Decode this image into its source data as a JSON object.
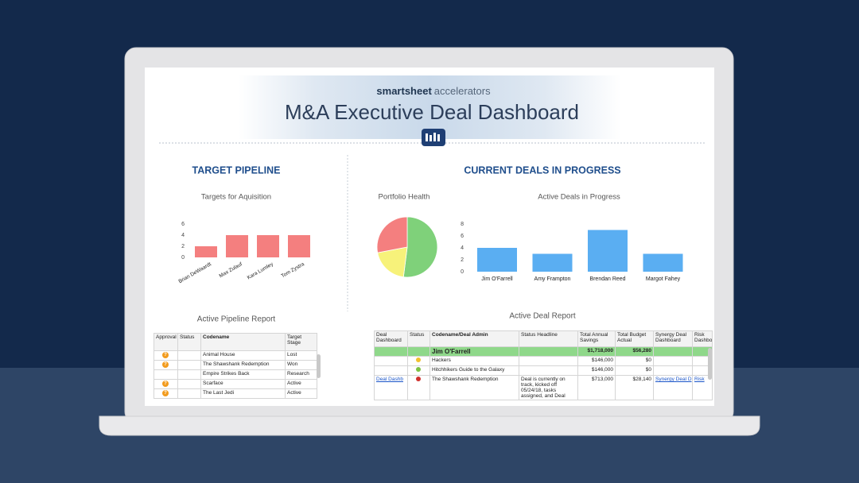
{
  "header": {
    "brand": "smartsheet",
    "brand_suffix": "accelerators",
    "title": "M&A Executive Deal Dashboard"
  },
  "sections": {
    "target_pipeline": "TARGET PIPELINE",
    "current_deals": "CURRENT DEALS IN PROGRESS"
  },
  "chart_data": [
    {
      "type": "bar",
      "title": "Targets for Aquisition",
      "categories": [
        "Brian DeWaardt",
        "Max Zulauf",
        "Kara Lumley",
        "Tom Zystra"
      ],
      "values": [
        2,
        4,
        4,
        4
      ],
      "color": "#f47f7f",
      "ylim": [
        0,
        6
      ],
      "yticks": [
        0,
        2,
        4,
        6
      ],
      "grid": false
    },
    {
      "type": "pie",
      "title": "Portfolio Health",
      "values": [
        52,
        20,
        28
      ],
      "colors": [
        "#7fd17a",
        "#f7f27a",
        "#f47f7f"
      ]
    },
    {
      "type": "bar",
      "title": "Active Deals in Progress",
      "categories": [
        "Jim O'Farrell",
        "Amy Frampton",
        "Brendan Reed",
        "Margot Fahey"
      ],
      "values": [
        4,
        3,
        7,
        3
      ],
      "color": "#5aaef2",
      "ylim": [
        0,
        8
      ],
      "yticks": [
        0,
        2,
        4,
        6,
        8
      ],
      "grid": false
    }
  ],
  "pipeline_report": {
    "title": "Active Pipeline Report",
    "columns": [
      "Approval",
      "Status",
      "Codename",
      "Target Stage"
    ],
    "rows": [
      {
        "flag": "?",
        "codename": "Animal House",
        "stage": "Lost"
      },
      {
        "flag": "?",
        "codename": "The Shawshank Redemption",
        "stage": "Won"
      },
      {
        "codename": "Empire Strikes Back",
        "stage": "Research"
      },
      {
        "flag": "?",
        "codename": "Scarface",
        "stage": "Active"
      },
      {
        "flag": "?",
        "codename": "The Last Jedi",
        "stage": "Active"
      }
    ]
  },
  "deal_report": {
    "title": "Active Deal Report",
    "columns": [
      "Deal Dashboard",
      "Status",
      "Codename/Deal Admin",
      "Status Headline",
      "Total Annual Savings",
      "Total Budget Actual",
      "Synergy Deal Dashboard",
      "Risk Dashboard"
    ],
    "rows": [
      {
        "group": true,
        "cells": [
          null,
          null,
          "Jim O'Farrell",
          null,
          "$1,718,000",
          "$56,280",
          null,
          null
        ]
      },
      {
        "status": "#f2c12e",
        "cells": [
          null,
          null,
          "Hackers",
          null,
          "$146,000",
          "$0",
          null,
          null
        ]
      },
      {
        "status": "#7cc243",
        "cells": [
          null,
          null,
          "Hitchhikers Guide to the Galaxy",
          null,
          "$146,000",
          "$0",
          null,
          null
        ]
      },
      {
        "status": "#d0312d",
        "cells": [
          "Deal Dashb",
          null,
          "The Shawshank Redemption",
          "Deal is currently on track, kicked off 05/24/18, tasks assigned, and Deal",
          "$713,000",
          "$28,140",
          "Synergy Deal D",
          "Risk"
        ]
      }
    ]
  }
}
